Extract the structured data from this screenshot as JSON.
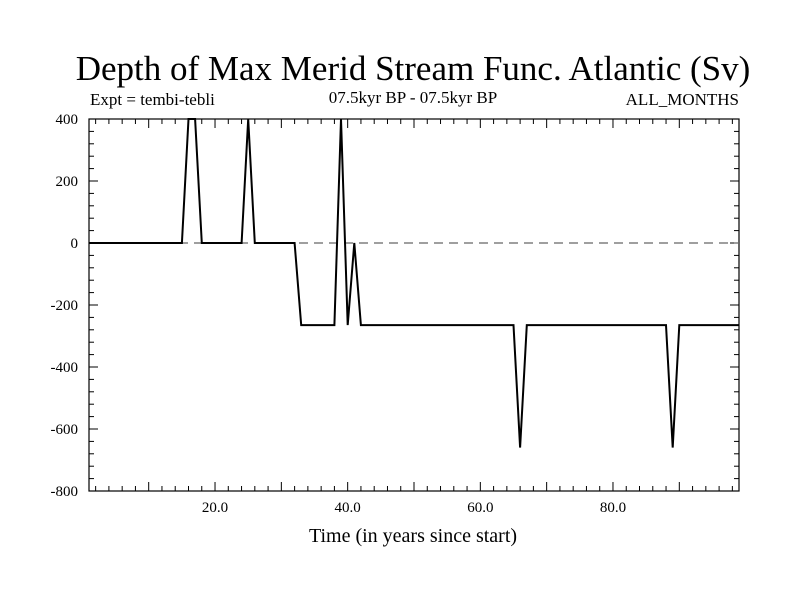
{
  "chart_data": {
    "type": "line",
    "title": "Depth of Max Merid Stream Func. Atlantic (Sv)",
    "subtitle_left": "Expt = tembi-tebli",
    "subtitle_center": "07.5kyr BP - 07.5kyr BP",
    "subtitle_right": "ALL_MONTHS",
    "xlabel": "Time (in years since start)",
    "ylabel": "",
    "xlim": [
      1,
      99
    ],
    "ylim": [
      -800,
      400
    ],
    "x_ticks": [
      20,
      40,
      60,
      80
    ],
    "x_tick_labels": [
      "20.0",
      "40.0",
      "60.0",
      "80.0"
    ],
    "y_ticks": [
      400,
      200,
      0,
      -200,
      -400,
      -600,
      -800
    ],
    "y_tick_labels": [
      "400",
      "200",
      "0",
      "-200",
      "-400",
      "-600",
      "-800"
    ],
    "zero_line": 0,
    "series": [
      {
        "x": [
          1,
          15,
          16,
          17,
          18,
          24,
          25,
          26,
          32,
          33,
          38,
          39,
          40,
          41,
          42,
          65,
          66,
          67,
          88,
          89,
          90,
          99
        ],
        "y": [
          0,
          0,
          400,
          400,
          0,
          0,
          400,
          0,
          0,
          -265,
          -265,
          400,
          -265,
          0,
          -265,
          -265,
          -660,
          -265,
          -265,
          -660,
          -265,
          -265
        ]
      }
    ]
  }
}
